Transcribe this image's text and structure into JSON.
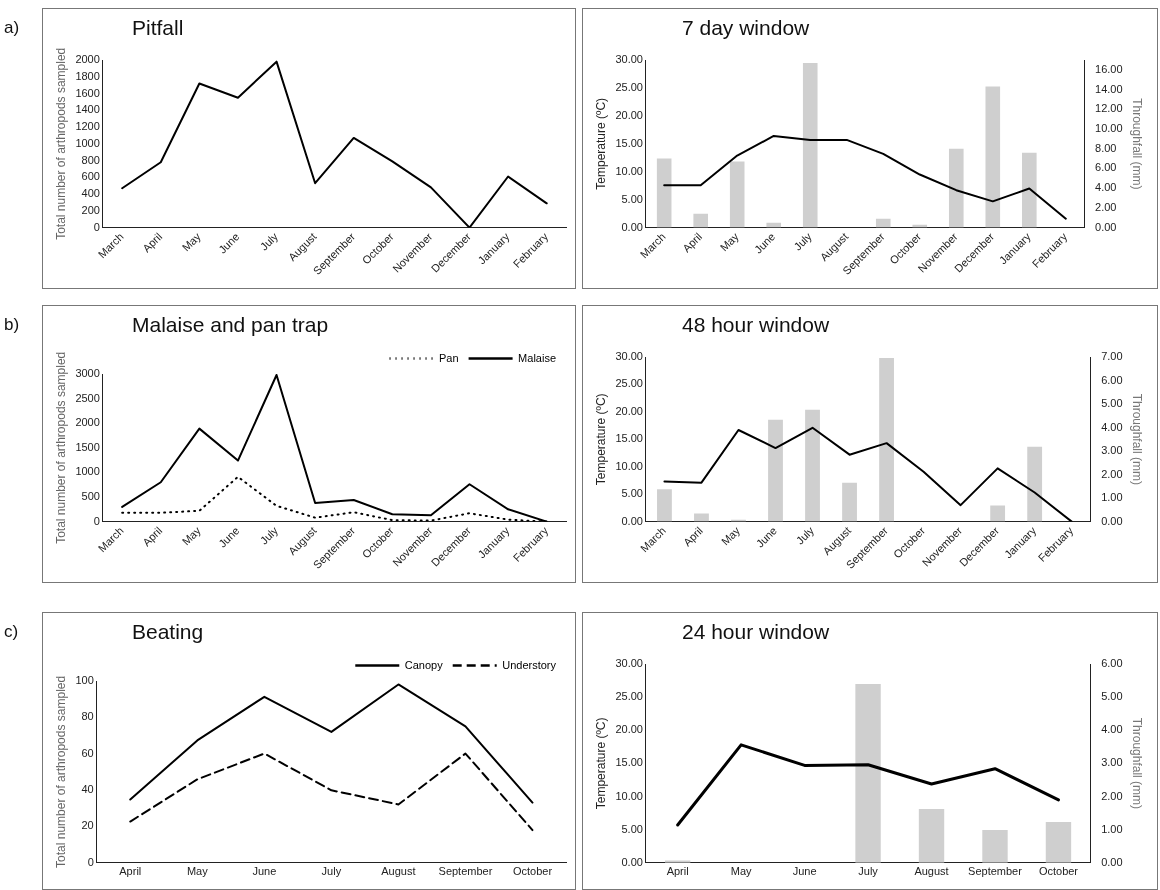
{
  "chart_data": [
    {
      "type": "line",
      "title": "Pitfall",
      "ylabel": "Total number of arthropods sampled",
      "annotations": [
        "a)"
      ],
      "categories": [
        "March",
        "April",
        "May",
        "June",
        "July",
        "August",
        "September",
        "October",
        "November",
        "December",
        "January",
        "February"
      ],
      "series": [
        {
          "color": "#000000",
          "values": [
            470,
            780,
            1720,
            1550,
            1980,
            530,
            1070,
            790,
            480,
            0,
            610,
            290
          ]
        }
      ],
      "ylim": [
        0,
        2000
      ],
      "yticks": [
        0,
        200,
        400,
        600,
        800,
        1000,
        1200,
        1400,
        1600,
        1800,
        2000
      ],
      "marker": "none",
      "line_style": "solid"
    },
    {
      "type": "bar",
      "title": "7 day window",
      "ylabel": "Temperature (ºC)",
      "y2label": "Throughfall (mm)",
      "categories": [
        "March",
        "April",
        "May",
        "June",
        "July",
        "August",
        "September",
        "October",
        "November",
        "December",
        "January",
        "February"
      ],
      "series": [
        {
          "type": "bar",
          "axis": "y2",
          "color": "#cfcfcf",
          "values": [
            7.0,
            1.4,
            6.7,
            0.5,
            16.7,
            0,
            0.9,
            0.3,
            8.0,
            14.3,
            7.6,
            null
          ]
        },
        {
          "type": "line",
          "color": "#000000",
          "values": [
            7.6,
            7.6,
            12.9,
            16.4,
            15.7,
            15.7,
            13.2,
            9.5,
            6.7,
            4.7,
            7.0,
            1.6
          ]
        }
      ],
      "ylim": [
        0,
        30
      ],
      "yticks": [
        {
          "value": 0,
          "label": "0.00"
        },
        {
          "value": 5,
          "label": "5.00"
        },
        {
          "value": 10,
          "label": "10.00"
        },
        {
          "value": 15,
          "label": "15.00"
        },
        {
          "value": 20,
          "label": "20.00"
        },
        {
          "value": 25,
          "label": "25.00"
        },
        {
          "value": 30,
          "label": "30.00"
        }
      ],
      "y2lim": [
        0,
        17
      ],
      "y2ticks": [
        {
          "value": 0,
          "label": "0.00"
        },
        {
          "value": 2,
          "label": "2.00"
        },
        {
          "value": 4,
          "label": "4.00"
        },
        {
          "value": 6,
          "label": "6.00"
        },
        {
          "value": 8,
          "label": "8.00"
        },
        {
          "value": 10,
          "label": "10.00"
        },
        {
          "value": 12,
          "label": "12.00"
        },
        {
          "value": 14,
          "label": "14.00"
        },
        {
          "value": 16,
          "label": "16.00"
        }
      ],
      "marker": "none"
    },
    {
      "type": "line",
      "title": "Malaise and pan trap",
      "ylabel": "Total number of arthropods sampled",
      "annotations": [
        "b)"
      ],
      "legend": "top right",
      "categories": [
        "March",
        "April",
        "May",
        "June",
        "July",
        "August",
        "September",
        "October",
        "November",
        "December",
        "January",
        "February"
      ],
      "series": [
        {
          "name": "Pan",
          "color": "#000000",
          "line_style": "dotted",
          "values": [
            180,
            180,
            220,
            910,
            320,
            80,
            190,
            30,
            20,
            170,
            40,
            0
          ]
        },
        {
          "name": "Malaise",
          "color": "#000000",
          "line_style": "solid",
          "values": [
            300,
            800,
            1890,
            1240,
            2980,
            380,
            440,
            150,
            130,
            760,
            250,
            0
          ]
        }
      ],
      "ylim": [
        0,
        3000
      ],
      "yticks": [
        0,
        500,
        1000,
        1500,
        2000,
        2500,
        3000
      ],
      "marker": "none"
    },
    {
      "type": "bar",
      "title": "48 hour window",
      "ylabel": "Temperature (ºC)",
      "y2label": "Throughfall (mm)",
      "categories": [
        "March",
        "April",
        "May",
        "June",
        "July",
        "August",
        "September",
        "October",
        "November",
        "December",
        "January",
        "February"
      ],
      "series": [
        {
          "type": "bar",
          "axis": "y2",
          "color": "#cfcfcf",
          "values": [
            1.38,
            0.35,
            0.08,
            4.33,
            4.76,
            1.65,
            6.96,
            null,
            0,
            0.69,
            3.18,
            0
          ]
        },
        {
          "type": "line",
          "color": "#000000",
          "values": [
            7.3,
            7.1,
            16.7,
            13.4,
            17.1,
            12.2,
            14.3,
            9.1,
            3.0,
            9.7,
            5.3,
            0
          ]
        }
      ],
      "ylim": [
        0,
        30
      ],
      "yticks": [
        {
          "value": 0,
          "label": "0.00"
        },
        {
          "value": 5,
          "label": "5.00"
        },
        {
          "value": 10,
          "label": "10.00"
        },
        {
          "value": 15,
          "label": "15.00"
        },
        {
          "value": 20,
          "label": "20.00"
        },
        {
          "value": 25,
          "label": "25.00"
        },
        {
          "value": 30,
          "label": "30.00"
        }
      ],
      "y2lim": [
        0,
        7
      ],
      "y2ticks": [
        {
          "value": 0,
          "label": "0.00"
        },
        {
          "value": 1,
          "label": "1.00"
        },
        {
          "value": 2,
          "label": "2.00"
        },
        {
          "value": 3,
          "label": "3.00"
        },
        {
          "value": 4,
          "label": "4.00"
        },
        {
          "value": 5,
          "label": "5.00"
        },
        {
          "value": 6,
          "label": "6.00"
        },
        {
          "value": 7,
          "label": "7.00"
        }
      ],
      "marker": "none"
    },
    {
      "type": "line",
      "title": "Beating",
      "ylabel": "Total number of arthropods sampled",
      "annotations": [
        "c)"
      ],
      "legend": "top right",
      "categories": [
        "April",
        "May",
        "June",
        "July",
        "August",
        "September",
        "October"
      ],
      "series": [
        {
          "name": "Canopy",
          "color": "#000000",
          "line_style": "solid",
          "values": [
            34.8,
            67.3,
            91.3,
            72.0,
            98.1,
            75.0,
            33.1
          ]
        },
        {
          "name": "Understory",
          "color": "#000000",
          "line_style": "dashed",
          "values": [
            22.7,
            45.9,
            60.1,
            39.9,
            32.1,
            60.1,
            18.0
          ]
        }
      ],
      "ylim": [
        0,
        100
      ],
      "yticks": [
        0,
        20,
        40,
        60,
        80,
        100
      ],
      "marker": "none"
    },
    {
      "type": "bar",
      "title": "24 hour window",
      "ylabel": "Temperature (ºC)",
      "y2label": "Throughfall (mm)",
      "categories": [
        "April",
        "May",
        "June",
        "July",
        "August",
        "September",
        "October"
      ],
      "series": [
        {
          "type": "bar",
          "axis": "y2",
          "color": "#cfcfcf",
          "values": [
            0.07,
            null,
            0,
            5.4,
            1.62,
            0.99,
            1.23
          ]
        },
        {
          "type": "line",
          "color": "#000000",
          "values": [
            5.7,
            17.8,
            14.7,
            14.8,
            11.9,
            14.2,
            9.5
          ]
        }
      ],
      "ylim": [
        0,
        30
      ],
      "yticks": [
        {
          "value": 0,
          "label": "0.00"
        },
        {
          "value": 5,
          "label": "5.00"
        },
        {
          "value": 10,
          "label": "10.00"
        },
        {
          "value": 15,
          "label": "15.00"
        },
        {
          "value": 20,
          "label": "20.00"
        },
        {
          "value": 25,
          "label": "25.00"
        },
        {
          "value": 30,
          "label": "30.00"
        }
      ],
      "y2lim": [
        0,
        6
      ],
      "y2ticks": [
        {
          "value": 0,
          "label": "0.00"
        },
        {
          "value": 1,
          "label": "1.00"
        },
        {
          "value": 2,
          "label": "2.00"
        },
        {
          "value": 3,
          "label": "3.00"
        },
        {
          "value": 4,
          "label": "4.00"
        },
        {
          "value": 5,
          "label": "5.00"
        },
        {
          "value": 6,
          "label": "6.00"
        }
      ],
      "marker": "none"
    }
  ]
}
